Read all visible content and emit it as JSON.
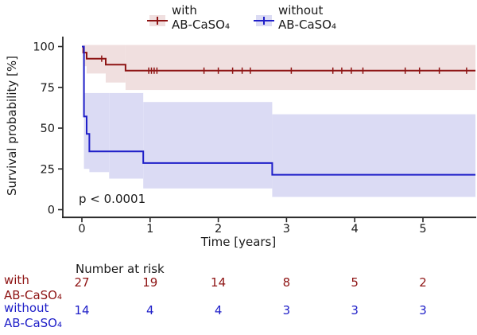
{
  "chart_data": {
    "type": "line",
    "subtype": "kaplan-meier-step",
    "xlabel": "Time [years]",
    "ylabel": "Survival probability [%]",
    "pvalue": "p < 0.0001",
    "xticks": [
      "0",
      "1",
      "2",
      "3",
      "4",
      "5"
    ],
    "yticks": [
      "0",
      "25",
      "50",
      "75",
      "100"
    ],
    "xlim": [
      0,
      5.77
    ],
    "ylim": [
      0,
      100
    ],
    "grid": false,
    "legend_position": "top-center",
    "series": [
      {
        "name": "with AB-CaSO₄",
        "line_color": "#8e1414",
        "band_color": "#f0dfdf",
        "steps": [
          [
            0,
            100
          ],
          [
            0.02,
            96.3
          ],
          [
            0.07,
            92.6
          ],
          [
            0.35,
            88.9
          ],
          [
            0.64,
            85.2
          ]
        ],
        "end_time": 5.77,
        "censor_marks": [
          [
            0.29,
            92.6
          ],
          [
            0.98,
            85.2
          ],
          [
            1.02,
            85.2
          ],
          [
            1.06,
            85.2
          ],
          [
            1.1,
            85.2
          ],
          [
            1.79,
            85.2
          ],
          [
            2.0,
            85.2
          ],
          [
            2.21,
            85.2
          ],
          [
            2.35,
            85.2
          ],
          [
            2.47,
            85.2
          ],
          [
            3.07,
            85.2
          ],
          [
            3.68,
            85.2
          ],
          [
            3.81,
            85.2
          ],
          [
            3.95,
            85.2
          ],
          [
            4.12,
            85.2
          ],
          [
            4.74,
            85.2
          ],
          [
            4.95,
            85.2
          ],
          [
            5.24,
            85.2
          ],
          [
            5.64,
            85.2
          ]
        ],
        "ci_band": [
          [
            0.02,
            0.07,
            88,
            101
          ],
          [
            0.07,
            0.35,
            83.5,
            101
          ],
          [
            0.35,
            0.64,
            78,
            101
          ],
          [
            0.64,
            5.77,
            73.4,
            101
          ]
        ]
      },
      {
        "name": "without AB-CaSO₄",
        "line_color": "#1f1fc8",
        "band_color": "#dbdbf4",
        "steps": [
          [
            0,
            100
          ],
          [
            0.03,
            57.1
          ],
          [
            0.07,
            46.5
          ],
          [
            0.11,
            35.7
          ],
          [
            0.9,
            28.6
          ],
          [
            2.79,
            21.4
          ]
        ],
        "end_time": 5.77,
        "censor_marks": [],
        "ci_band": [
          [
            0.03,
            0.11,
            25,
            71.5
          ],
          [
            0.11,
            0.4,
            23,
            71.5
          ],
          [
            0.4,
            0.9,
            19,
            71.5
          ],
          [
            0.9,
            2.79,
            13,
            66
          ],
          [
            2.79,
            5.77,
            7.8,
            58.5
          ]
        ]
      }
    ],
    "legend": {
      "entries": [
        {
          "line1": "with",
          "line2": "AB-CaSO₄",
          "line_color": "#8e1414",
          "band_color": "#f0dfdf"
        },
        {
          "line1": "without",
          "line2": "AB-CaSO₄",
          "line_color": "#1f1fc8",
          "band_color": "#dbdbf4"
        }
      ]
    },
    "risk_table": {
      "header": "Number at risk",
      "times": [
        0,
        1,
        2,
        3,
        4,
        5
      ],
      "rows": [
        {
          "line1": "with",
          "line2": "AB-CaSO₄",
          "color": "#8e1414",
          "values": [
            "27",
            "19",
            "14",
            "8",
            "5",
            "2"
          ]
        },
        {
          "line1": "without",
          "line2": "AB-CaSO₄",
          "color": "#1f1fc8",
          "values": [
            "14",
            "4",
            "4",
            "3",
            "3",
            "3"
          ]
        }
      ]
    },
    "axis_color": "#262626"
  }
}
